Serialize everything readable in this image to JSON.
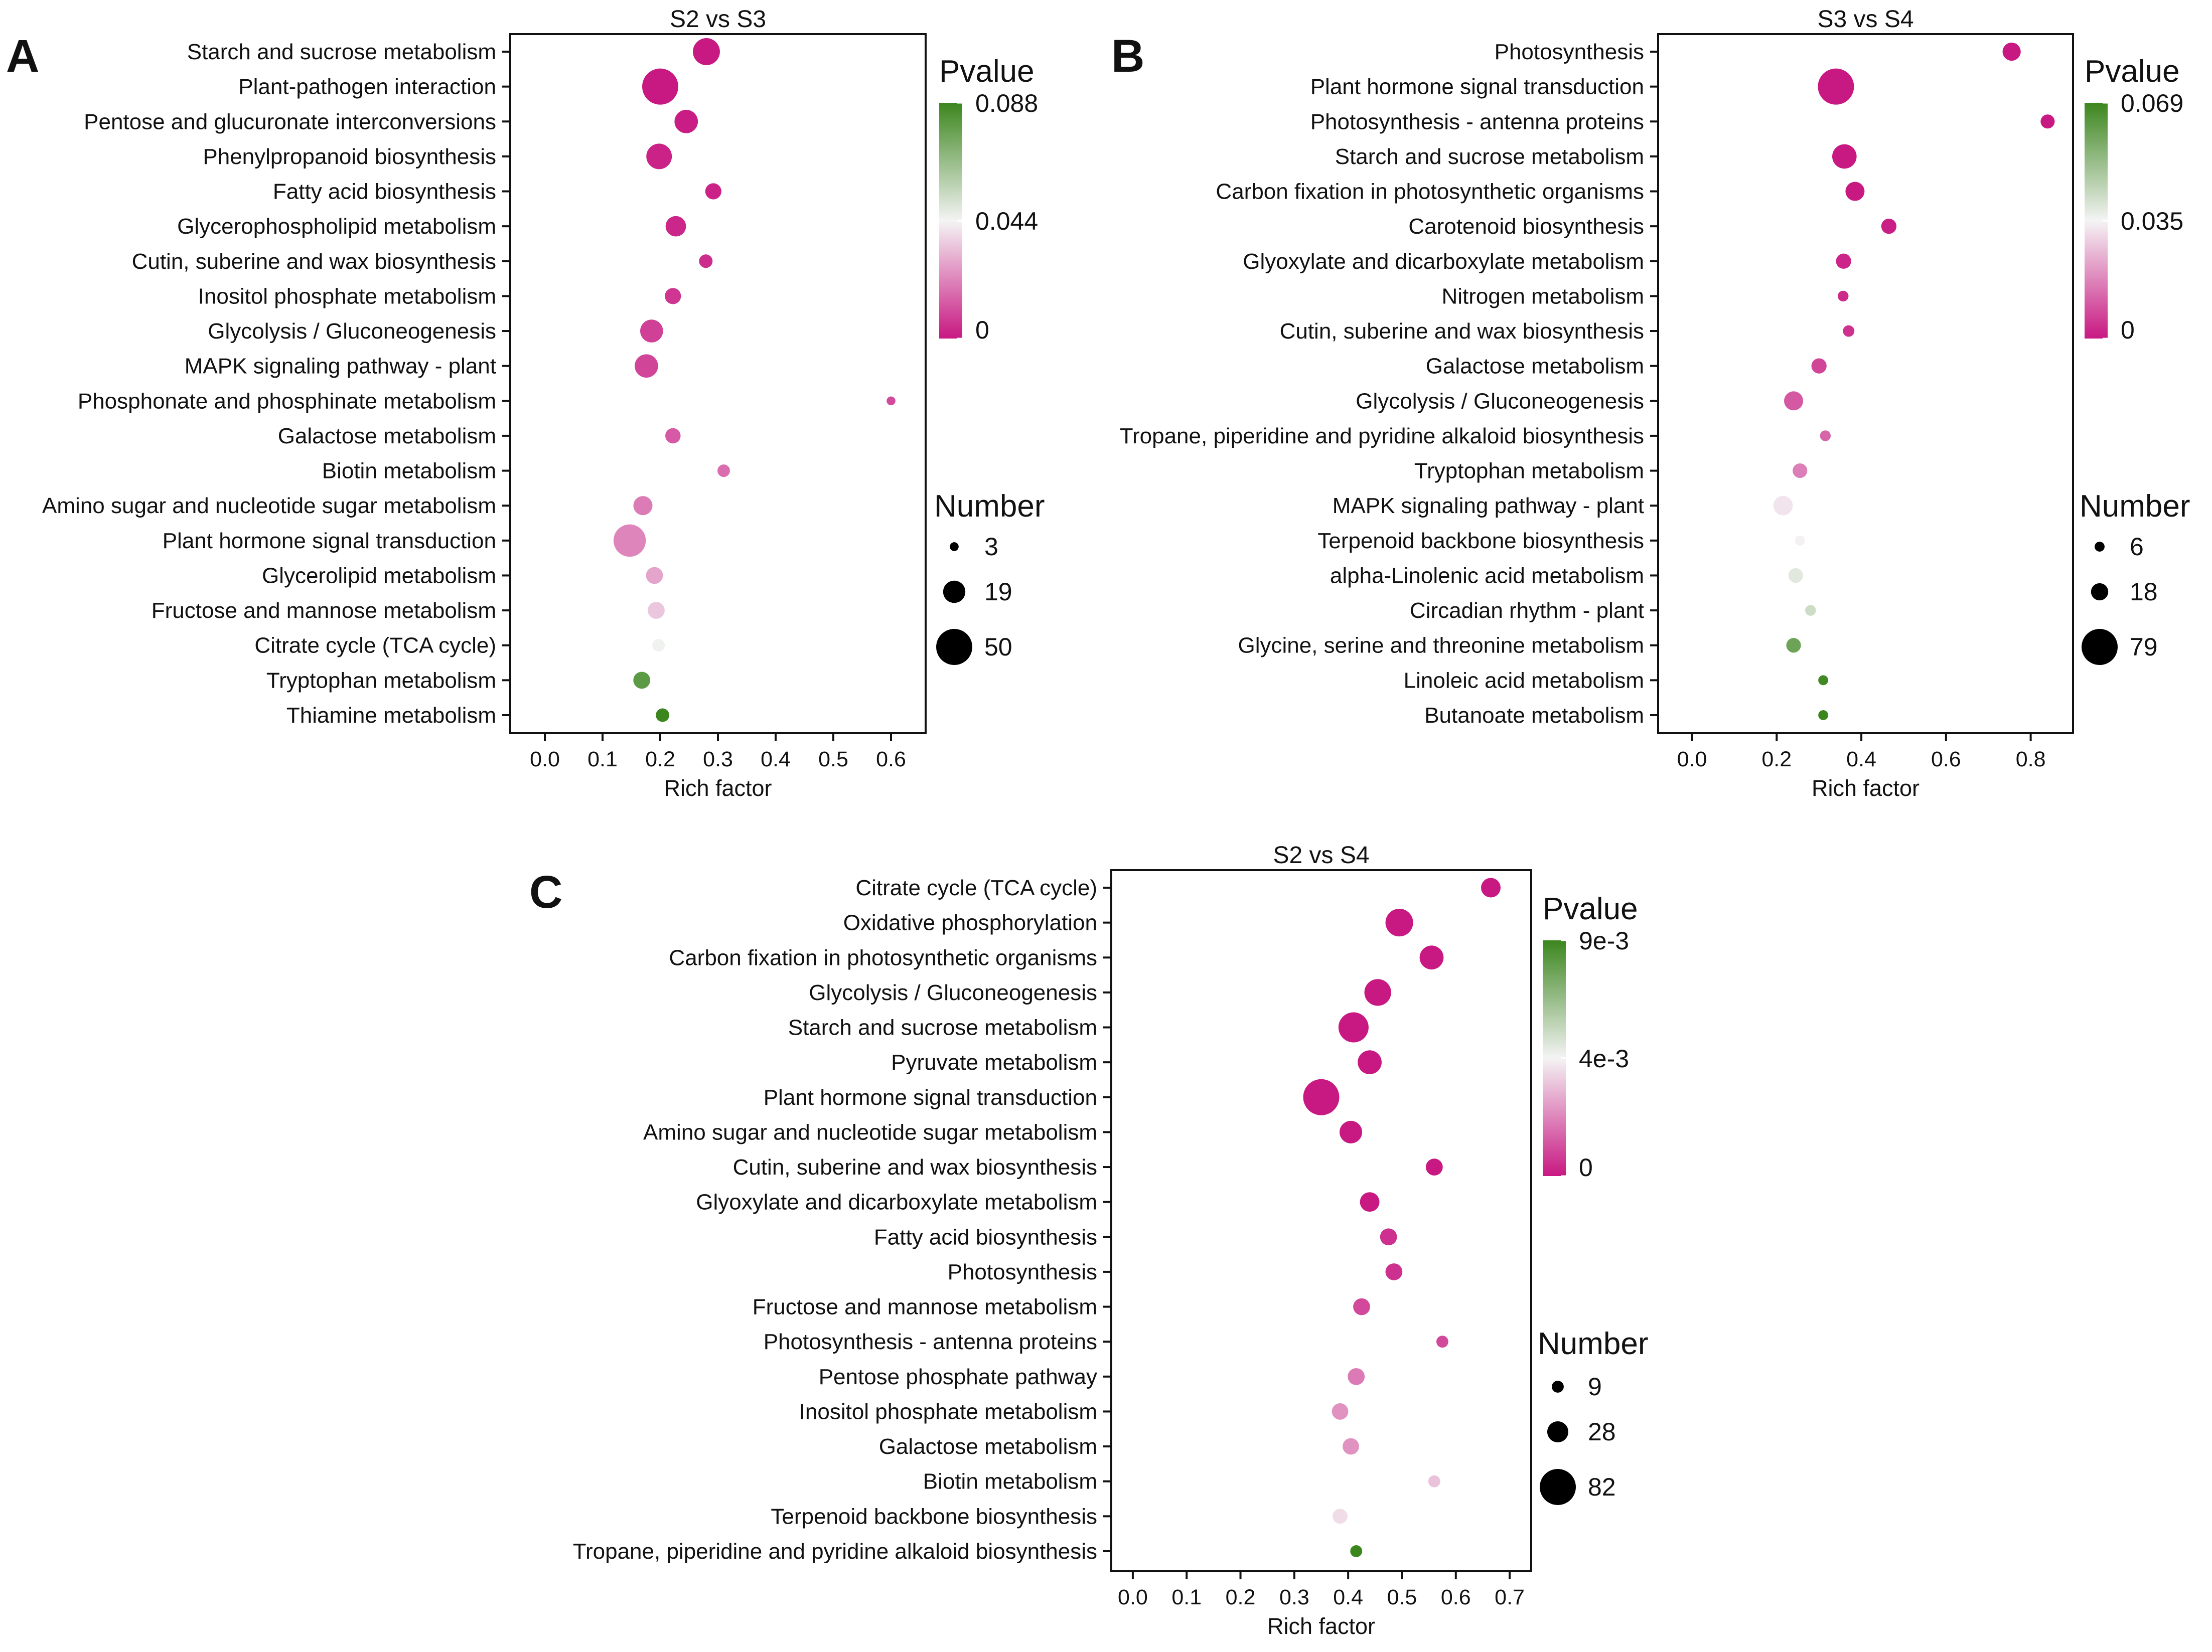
{
  "chart_data": [
    {
      "type": "scatter",
      "panel_letter": "A",
      "title": "S2 vs S3",
      "xlabel": "Rich factor",
      "ylabel": "",
      "xlim": [
        -0.06,
        0.66
      ],
      "xticks": [
        "0.0",
        "0.1",
        "0.2",
        "0.3",
        "0.4",
        "0.5",
        "0.6"
      ],
      "pvalue_legend": {
        "title": "Pvalue",
        "max": 0.088,
        "labels": [
          "0.088",
          "0.044",
          "0"
        ]
      },
      "size_legend": {
        "title": "Number",
        "values": [
          3,
          19,
          50
        ],
        "labels": [
          "3",
          "19",
          "50"
        ]
      },
      "pathways": [
        "Starch and sucrose metabolism",
        "Plant-pathogen interaction",
        "Pentose and glucuronate interconversions",
        "Phenylpropanoid biosynthesis",
        "Fatty acid biosynthesis",
        "Glycerophospholipid metabolism",
        "Cutin, suberine and wax biosynthesis",
        "Inositol phosphate metabolism",
        "Glycolysis / Gluconeogenesis",
        "MAPK signaling pathway - plant",
        "Phosphonate and phosphinate metabolism",
        "Galactose metabolism",
        "Biotin metabolism",
        "Amino sugar and nucleotide sugar metabolism",
        "Plant hormone signal transduction",
        "Glycerolipid metabolism",
        "Fructose and mannose metabolism",
        "Citrate cycle (TCA cycle)",
        "Tryptophan metabolism",
        "Thiamine metabolism"
      ],
      "rich_factor": [
        0.28,
        0.2,
        0.245,
        0.198,
        0.292,
        0.227,
        0.279,
        0.222,
        0.185,
        0.176,
        0.6,
        0.222,
        0.31,
        0.17,
        0.147,
        0.19,
        0.193,
        0.197,
        0.168,
        0.204
      ],
      "number": [
        28,
        50,
        21,
        25,
        10,
        16,
        7,
        10,
        20,
        21,
        3,
        9,
        6,
        14,
        40,
        11,
        11,
        6,
        11,
        7
      ],
      "pvalue": [
        0.0,
        0.0,
        0.001,
        0.002,
        0.002,
        0.003,
        0.004,
        0.006,
        0.008,
        0.009,
        0.01,
        0.013,
        0.017,
        0.02,
        0.022,
        0.028,
        0.035,
        0.045,
        0.08,
        0.088
      ]
    },
    {
      "type": "scatter",
      "panel_letter": "B",
      "title": "S3 vs S4",
      "xlabel": "Rich factor",
      "ylabel": "",
      "xlim": [
        -0.08,
        0.9
      ],
      "xticks": [
        "0.0",
        "0.2",
        "0.4",
        "0.6",
        "0.8"
      ],
      "pvalue_legend": {
        "title": "Pvalue",
        "max": 0.069,
        "labels": [
          "0.069",
          "0.035",
          "0"
        ]
      },
      "size_legend": {
        "title": "Number",
        "values": [
          6,
          18,
          79
        ],
        "labels": [
          "6",
          "18",
          "79"
        ]
      },
      "pathways": [
        "Photosynthesis",
        "Plant hormone signal transduction",
        "Photosynthesis - antenna proteins",
        "Starch and sucrose metabolism",
        "Carbon fixation in photosynthetic organisms",
        "Carotenoid biosynthesis",
        "Glyoxylate and dicarboxylate metabolism",
        "Nitrogen metabolism",
        "Cutin, suberine and wax biosynthesis",
        "Galactose metabolism",
        "Glycolysis / Gluconeogenesis",
        "Tropane, piperidine and pyridine alkaloid biosynthesis",
        "Tryptophan metabolism",
        "MAPK signaling pathway - plant",
        "Terpenoid backbone biosynthesis",
        "alpha-Linolenic acid metabolism",
        "Circadian rhythm - plant",
        "Glycine, serine and threonine metabolism",
        "Linoleic acid metabolism",
        "Butanoate metabolism"
      ],
      "rich_factor": [
        0.755,
        0.34,
        0.84,
        0.36,
        0.385,
        0.465,
        0.358,
        0.357,
        0.37,
        0.3,
        0.24,
        0.315,
        0.255,
        0.215,
        0.255,
        0.245,
        0.28,
        0.24,
        0.31,
        0.31
      ],
      "number": [
        20,
        79,
        12,
        36,
        22,
        14,
        14,
        7,
        8,
        14,
        22,
        7,
        13,
        23,
        6,
        13,
        7,
        13,
        6,
        6
      ],
      "pvalue": [
        0.0,
        0.0,
        0.0,
        0.0,
        0.0,
        0.001,
        0.002,
        0.003,
        0.004,
        0.007,
        0.01,
        0.012,
        0.016,
        0.032,
        0.034,
        0.038,
        0.042,
        0.06,
        0.068,
        0.069
      ]
    },
    {
      "type": "scatter",
      "panel_letter": "C",
      "title": "S2 vs S4",
      "xlabel": "Rich factor",
      "ylabel": "",
      "xlim": [
        -0.04,
        0.74
      ],
      "xticks": [
        "0.0",
        "0.1",
        "0.2",
        "0.3",
        "0.4",
        "0.5",
        "0.6",
        "0.7"
      ],
      "pvalue_legend": {
        "title": "Pvalue",
        "max": 0.009,
        "labels": [
          "9e-3",
          "4e-3",
          "0"
        ]
      },
      "size_legend": {
        "title": "Number",
        "values": [
          9,
          28,
          82
        ],
        "labels": [
          "9",
          "28",
          "82"
        ]
      },
      "pathways": [
        "Citrate cycle (TCA cycle)",
        "Oxidative phosphorylation",
        "Carbon fixation in photosynthetic organisms",
        "Glycolysis / Gluconeogenesis",
        "Starch and sucrose metabolism",
        "Pyruvate metabolism",
        "Plant hormone signal transduction",
        "Amino sugar and nucleotide sugar metabolism",
        "Cutin, suberine and wax biosynthesis",
        "Glyoxylate and dicarboxylate metabolism",
        "Fatty acid biosynthesis",
        "Photosynthesis",
        "Fructose and mannose metabolism",
        "Photosynthesis - antenna proteins",
        "Pentose phosphate pathway",
        "Inositol phosphate metabolism",
        "Galactose metabolism",
        "Biotin metabolism",
        "Terpenoid backbone biosynthesis",
        "Tropane, piperidine and pyridine alkaloid biosynthesis"
      ],
      "rich_factor": [
        0.665,
        0.495,
        0.555,
        0.455,
        0.41,
        0.44,
        0.35,
        0.405,
        0.56,
        0.44,
        0.475,
        0.485,
        0.425,
        0.575,
        0.415,
        0.385,
        0.405,
        0.56,
        0.385,
        0.415
      ],
      "number": [
        24,
        48,
        36,
        45,
        57,
        36,
        82,
        32,
        18,
        24,
        18,
        18,
        18,
        9,
        18,
        17,
        17,
        9,
        14,
        9
      ],
      "pvalue": [
        0.0,
        0.0,
        0.0,
        0.0,
        0.0,
        0.0,
        0.0,
        0.0,
        0.0,
        0.0,
        0.0005,
        0.0005,
        0.001,
        0.001,
        0.002,
        0.0025,
        0.0025,
        0.0035,
        0.004,
        0.009
      ]
    }
  ]
}
